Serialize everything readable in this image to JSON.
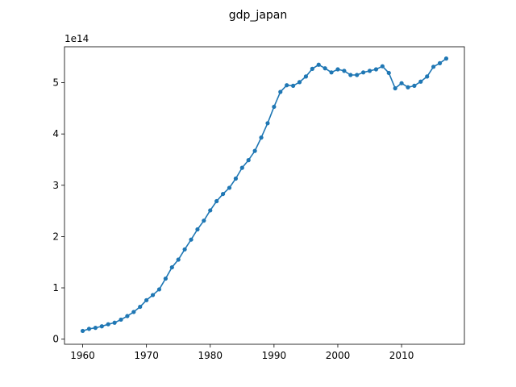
{
  "chart_data": {
    "type": "line",
    "title": "gdp_japan",
    "xlabel": "",
    "ylabel": "",
    "y_offset_label": "1e14",
    "y_scale_factor": 100000000000000.0,
    "xlim": [
      1957.15,
      2019.85
    ],
    "ylim": [
      -0.1,
      5.7
    ],
    "xticks": [
      1960,
      1970,
      1980,
      1990,
      2000,
      2010
    ],
    "yticks": [
      0,
      1,
      2,
      3,
      4,
      5
    ],
    "grid": false,
    "legend": "none",
    "marker": "circle",
    "colors": {
      "series": "#1f77b4",
      "axes": "#000000"
    },
    "series": [
      {
        "x": [
          1960,
          1961,
          1962,
          1963,
          1964,
          1965,
          1966,
          1967,
          1968,
          1969,
          1970,
          1971,
          1972,
          1973,
          1974,
          1975,
          1976,
          1977,
          1978,
          1979,
          1980,
          1981,
          1982,
          1983,
          1984,
          1985,
          1986,
          1987,
          1988,
          1989,
          1990,
          1991,
          1992,
          1993,
          1994,
          1995,
          1996,
          1997,
          1998,
          1999,
          2000,
          2001,
          2002,
          2003,
          2004,
          2005,
          2006,
          2007,
          2008,
          2009,
          2010,
          2011,
          2012,
          2013,
          2014,
          2015,
          2016,
          2017
        ],
        "y": [
          0.16,
          0.2,
          0.22,
          0.25,
          0.29,
          0.32,
          0.38,
          0.45,
          0.53,
          0.63,
          0.76,
          0.86,
          0.97,
          1.18,
          1.4,
          1.55,
          1.75,
          1.94,
          2.14,
          2.31,
          2.51,
          2.69,
          2.83,
          2.95,
          3.13,
          3.34,
          3.49,
          3.67,
          3.93,
          4.21,
          4.53,
          4.82,
          4.95,
          4.94,
          5.01,
          5.12,
          5.27,
          5.35,
          5.28,
          5.2,
          5.26,
          5.23,
          5.15,
          5.15,
          5.2,
          5.23,
          5.26,
          5.32,
          5.19,
          4.89,
          4.99,
          4.91,
          4.94,
          5.02,
          5.12,
          5.31,
          5.38,
          5.47
        ]
      }
    ]
  }
}
